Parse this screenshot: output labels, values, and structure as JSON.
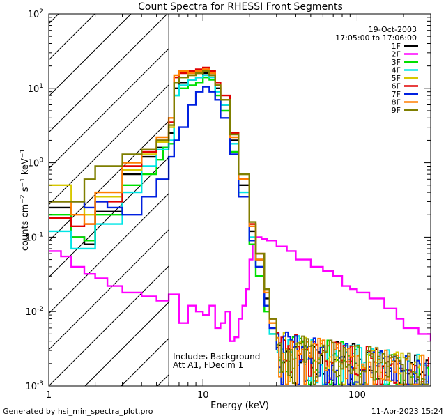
{
  "chart_data": {
    "type": "line",
    "title": "Count Spectra for RHESSI Front Segments",
    "xlabel": "Energy (keV)",
    "ylabel": "counts cm^-2 s^-1 keV^-1",
    "xscale": "log",
    "yscale": "log",
    "xlim": [
      1,
      300
    ],
    "ylim": [
      0.001,
      100
    ],
    "x_tick_labels": [
      "1",
      "10",
      "100"
    ],
    "y_tick_labels": [
      "10^-3",
      "10^-2",
      "10^-1",
      "10^0",
      "10^1",
      "10^2"
    ],
    "date": "19-Oct-2003",
    "time_range": "17:05:00 to 17:06:00",
    "annotation_line1": "Includes Background",
    "annotation_line2": "Att A1, FDecim 1",
    "attenuator_edge_keV": 6,
    "footer_left": "Generated by hsi_min_spectra_plot.pro",
    "footer_right": "11-Apr-2023 15:24",
    "series": [
      {
        "name": "1F",
        "color": "#000000"
      },
      {
        "name": "2F",
        "color": "#ff00ff"
      },
      {
        "name": "3F",
        "color": "#00e000"
      },
      {
        "name": "4F",
        "color": "#00e5e5"
      },
      {
        "name": "5F",
        "color": "#d7c800"
      },
      {
        "name": "6F",
        "color": "#e00000"
      },
      {
        "name": "7F",
        "color": "#0020e0"
      },
      {
        "name": "8F",
        "color": "#ff7f00"
      },
      {
        "name": "9F",
        "color": "#7f7f00"
      }
    ],
    "thermal_curves": [
      {
        "series": "1F",
        "points": [
          [
            1.0,
            0.25
          ],
          [
            1.4,
            0.1
          ],
          [
            1.7,
            0.08
          ],
          [
            2.0,
            0.22
          ],
          [
            3.0,
            0.7
          ],
          [
            4.0,
            1.2
          ],
          [
            5.0,
            1.6
          ],
          [
            6.0,
            2.5
          ],
          [
            6.5,
            10
          ],
          [
            7.0,
            12
          ],
          [
            8.0,
            13
          ],
          [
            9.0,
            14
          ],
          [
            10.0,
            16
          ],
          [
            11.0,
            15
          ],
          [
            12.0,
            10
          ],
          [
            13.0,
            6
          ],
          [
            15.0,
            2
          ],
          [
            17.0,
            0.5
          ],
          [
            20.0,
            0.12
          ],
          [
            22.0,
            0.05
          ],
          [
            25.0,
            0.015
          ],
          [
            27.0,
            0.006
          ],
          [
            30.0,
            0.003
          ]
        ]
      },
      {
        "series": "3F",
        "points": [
          [
            1.0,
            0.2
          ],
          [
            1.4,
            0.1
          ],
          [
            1.7,
            0.09
          ],
          [
            2.0,
            0.2
          ],
          [
            3.0,
            0.5
          ],
          [
            4.0,
            0.7
          ],
          [
            5.0,
            1.1
          ],
          [
            5.5,
            1.6
          ],
          [
            6.0,
            1.8
          ],
          [
            6.5,
            8
          ],
          [
            7.0,
            10
          ],
          [
            8.0,
            11
          ],
          [
            9.0,
            12
          ],
          [
            10.0,
            14
          ],
          [
            11.0,
            13
          ],
          [
            12.0,
            8
          ],
          [
            13.0,
            5
          ],
          [
            15.0,
            1.4
          ],
          [
            17.0,
            0.35
          ],
          [
            20.0,
            0.08
          ],
          [
            22.0,
            0.03
          ],
          [
            25.0,
            0.01
          ],
          [
            27.0,
            0.005
          ],
          [
            30.0,
            0.003
          ]
        ]
      },
      {
        "series": "4F",
        "points": [
          [
            1.0,
            0.12
          ],
          [
            1.4,
            0.07
          ],
          [
            1.7,
            0.07
          ],
          [
            2.0,
            0.15
          ],
          [
            3.0,
            0.4
          ],
          [
            4.0,
            0.9
          ],
          [
            5.0,
            1.5
          ],
          [
            6.0,
            2.0
          ],
          [
            6.5,
            8
          ],
          [
            7.0,
            11
          ],
          [
            8.0,
            13
          ],
          [
            9.0,
            14
          ],
          [
            10.0,
            15
          ],
          [
            11.0,
            14
          ],
          [
            12.0,
            9
          ],
          [
            13.0,
            6
          ],
          [
            15.0,
            1.8
          ],
          [
            17.0,
            0.4
          ],
          [
            20.0,
            0.1
          ],
          [
            22.0,
            0.04
          ],
          [
            25.0,
            0.012
          ],
          [
            27.0,
            0.005
          ],
          [
            30.0,
            0.003
          ]
        ]
      },
      {
        "series": "5F",
        "points": [
          [
            1.0,
            0.5
          ],
          [
            1.4,
            0.3
          ],
          [
            1.7,
            0.2
          ],
          [
            2.0,
            0.35
          ],
          [
            3.0,
            0.8
          ],
          [
            4.0,
            1.3
          ],
          [
            5.0,
            1.9
          ],
          [
            6.0,
            3.0
          ],
          [
            6.5,
            12
          ],
          [
            7.0,
            14
          ],
          [
            8.0,
            15
          ],
          [
            9.0,
            16
          ],
          [
            10.0,
            17
          ],
          [
            11.0,
            16
          ],
          [
            12.0,
            11
          ],
          [
            13.0,
            7
          ],
          [
            15.0,
            2.5
          ],
          [
            17.0,
            0.7
          ],
          [
            20.0,
            0.15
          ],
          [
            22.0,
            0.06
          ],
          [
            25.0,
            0.02
          ],
          [
            27.0,
            0.008
          ],
          [
            30.0,
            0.004
          ]
        ]
      },
      {
        "series": "6F",
        "points": [
          [
            1.0,
            0.18
          ],
          [
            1.4,
            0.14
          ],
          [
            1.7,
            0.15
          ],
          [
            2.0,
            0.3
          ],
          [
            3.0,
            0.9
          ],
          [
            4.0,
            1.4
          ],
          [
            5.0,
            2.0
          ],
          [
            6.0,
            3.5
          ],
          [
            6.5,
            14
          ],
          [
            7.0,
            16
          ],
          [
            8.0,
            17
          ],
          [
            9.0,
            18
          ],
          [
            10.0,
            19
          ],
          [
            11.0,
            17
          ],
          [
            12.0,
            12
          ],
          [
            13.0,
            8
          ],
          [
            15.0,
            2.5
          ],
          [
            17.0,
            0.6
          ],
          [
            20.0,
            0.15
          ],
          [
            22.0,
            0.06
          ],
          [
            25.0,
            0.02
          ],
          [
            27.0,
            0.008
          ],
          [
            30.0,
            0.004
          ]
        ]
      },
      {
        "series": "7F",
        "points": [
          [
            1.0,
            0.3
          ],
          [
            1.4,
            0.3
          ],
          [
            1.7,
            0.25
          ],
          [
            2.0,
            0.3
          ],
          [
            2.4,
            0.25
          ],
          [
            3.0,
            0.2
          ],
          [
            4.0,
            0.35
          ],
          [
            5.0,
            0.6
          ],
          [
            6.0,
            1.2
          ],
          [
            6.5,
            2
          ],
          [
            7.0,
            3
          ],
          [
            8.0,
            6
          ],
          [
            9.0,
            9
          ],
          [
            10.0,
            10.5
          ],
          [
            11.0,
            9
          ],
          [
            12.0,
            7
          ],
          [
            13.0,
            4
          ],
          [
            15.0,
            1.3
          ],
          [
            17.0,
            0.35
          ],
          [
            20.0,
            0.09
          ],
          [
            22.0,
            0.04
          ],
          [
            25.0,
            0.012
          ],
          [
            27.0,
            0.006
          ],
          [
            30.0,
            0.003
          ]
        ]
      },
      {
        "series": "8F",
        "points": [
          [
            1.0,
            0.3
          ],
          [
            1.4,
            0.2
          ],
          [
            1.7,
            0.15
          ],
          [
            2.0,
            0.4
          ],
          [
            3.0,
            1.0
          ],
          [
            4.0,
            1.5
          ],
          [
            5.0,
            2.2
          ],
          [
            6.0,
            4.0
          ],
          [
            6.5,
            15
          ],
          [
            7.0,
            17
          ],
          [
            8.0,
            16
          ],
          [
            9.0,
            17
          ],
          [
            10.0,
            18
          ],
          [
            11.0,
            16
          ],
          [
            12.0,
            11
          ],
          [
            13.0,
            7
          ],
          [
            15.0,
            2.2
          ],
          [
            17.0,
            0.6
          ],
          [
            20.0,
            0.14
          ],
          [
            22.0,
            0.05
          ],
          [
            25.0,
            0.018
          ],
          [
            27.0,
            0.007
          ],
          [
            30.0,
            0.004
          ]
        ]
      },
      {
        "series": "9F",
        "points": [
          [
            1.0,
            0.3
          ],
          [
            1.4,
            0.3
          ],
          [
            1.7,
            0.6
          ],
          [
            2.0,
            0.9
          ],
          [
            3.0,
            1.3
          ],
          [
            4.0,
            1.5
          ],
          [
            5.0,
            2.0
          ],
          [
            6.0,
            3.2
          ],
          [
            6.5,
            12
          ],
          [
            7.0,
            14
          ],
          [
            8.0,
            15
          ],
          [
            9.0,
            16
          ],
          [
            10.0,
            17
          ],
          [
            11.0,
            15
          ],
          [
            12.0,
            11
          ],
          [
            13.0,
            7
          ],
          [
            15.0,
            2.4
          ],
          [
            17.0,
            0.7
          ],
          [
            20.0,
            0.16
          ],
          [
            22.0,
            0.06
          ],
          [
            25.0,
            0.02
          ],
          [
            27.0,
            0.008
          ],
          [
            30.0,
            0.004
          ]
        ]
      }
    ],
    "segment_2F_curve": [
      [
        1.0,
        0.065
      ],
      [
        1.2,
        0.055
      ],
      [
        1.4,
        0.04
      ],
      [
        1.7,
        0.032
      ],
      [
        2.0,
        0.028
      ],
      [
        2.4,
        0.022
      ],
      [
        3.0,
        0.018
      ],
      [
        4.0,
        0.016
      ],
      [
        5.0,
        0.014
      ],
      [
        6.0,
        0.017
      ],
      [
        7.0,
        0.007
      ],
      [
        8.0,
        0.012
      ],
      [
        9.0,
        0.01
      ],
      [
        10.0,
        0.009
      ],
      [
        11.0,
        0.012
      ],
      [
        12.0,
        0.006
      ],
      [
        13.0,
        0.007
      ],
      [
        14.0,
        0.01
      ],
      [
        15.0,
        0.004
      ],
      [
        16.0,
        0.0045
      ],
      [
        17.0,
        0.008
      ],
      [
        18.0,
        0.012
      ],
      [
        19.0,
        0.02
      ],
      [
        20.0,
        0.05
      ],
      [
        21.0,
        0.08
      ],
      [
        22.0,
        0.1
      ],
      [
        24.0,
        0.095
      ],
      [
        26.0,
        0.09
      ],
      [
        30.0,
        0.075
      ],
      [
        35.0,
        0.065
      ],
      [
        40.0,
        0.05
      ],
      [
        50.0,
        0.04
      ],
      [
        60.0,
        0.035
      ],
      [
        70.0,
        0.03
      ],
      [
        80.0,
        0.022
      ],
      [
        90.0,
        0.02
      ],
      [
        100.0,
        0.018
      ],
      [
        120.0,
        0.015
      ],
      [
        150.0,
        0.011
      ],
      [
        180.0,
        0.008
      ],
      [
        200.0,
        0.006
      ],
      [
        250.0,
        0.005
      ],
      [
        300.0,
        0.004
      ]
    ]
  }
}
